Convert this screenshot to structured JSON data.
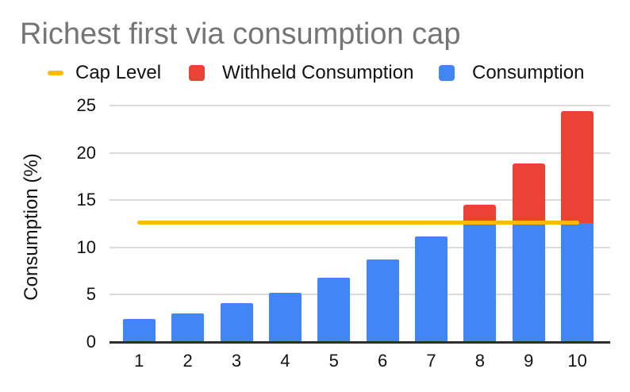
{
  "title": "Richest first via consumption cap",
  "legend": [
    {
      "label": "Cap Level",
      "swatch": "line-dash",
      "color": "#FBBC04"
    },
    {
      "label": "Withheld Consumption",
      "swatch": "box",
      "color": "#EA4335"
    },
    {
      "label": "Consumption",
      "swatch": "box",
      "color": "#4285F4"
    }
  ],
  "colors": {
    "consumption_blue": "#4285F4",
    "withheld_red": "#EA4335",
    "cap_yellow": "#FBBC04",
    "title_gray": "#757575",
    "gridline_gray": "#dadada",
    "axis_dark": "#2e2e2e"
  },
  "chart_data": {
    "type": "bar",
    "stacked": true,
    "title": "Richest first via consumption cap",
    "xlabel": "",
    "ylabel": "Consumption (%)",
    "categories": [
      "1",
      "2",
      "3",
      "4",
      "5",
      "6",
      "7",
      "8",
      "9",
      "10"
    ],
    "series": [
      {
        "name": "Consumption",
        "type": "bar",
        "color": "#4285F4",
        "values": [
          2.4,
          3.0,
          4.1,
          5.2,
          6.8,
          8.7,
          11.2,
          12.6,
          12.6,
          12.6
        ]
      },
      {
        "name": "Withheld Consumption",
        "type": "bar",
        "color": "#EA4335",
        "values": [
          0,
          0,
          0,
          0,
          0,
          0,
          0,
          1.9,
          6.3,
          11.8
        ]
      },
      {
        "name": "Cap Level",
        "type": "line",
        "color": "#FBBC04",
        "values": [
          12.6,
          12.6,
          12.6,
          12.6,
          12.6,
          12.6,
          12.6,
          12.6,
          12.6,
          12.6
        ]
      }
    ],
    "stacked_totals": [
      2.4,
      3.0,
      4.1,
      5.2,
      6.8,
      8.7,
      11.2,
      14.5,
      18.9,
      24.4
    ],
    "cap_level": 12.6,
    "ylim": [
      0,
      25
    ],
    "yticks": [
      0,
      5,
      10,
      15,
      20,
      25
    ],
    "grid": true,
    "legend_position": "top"
  }
}
